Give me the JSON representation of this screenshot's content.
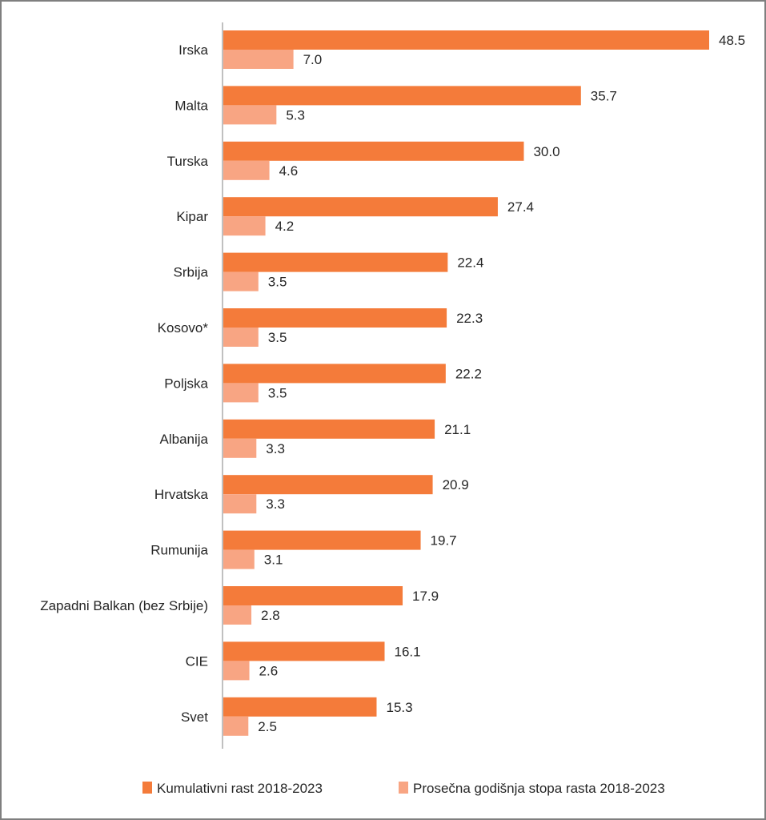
{
  "chart_data": {
    "type": "bar",
    "orientation": "horizontal",
    "title": "",
    "xlabel": "",
    "ylabel": "",
    "categories": [
      "Irska",
      "Malta",
      "Turska",
      "Kipar",
      "Srbija",
      "Kosovo*",
      "Poljska",
      "Albanija",
      "Hrvatska",
      "Rumunija",
      "Zapadni Balkan (bez Srbije)",
      "CIE",
      "Svet"
    ],
    "series": [
      {
        "name": "Kumulativni rast 2018-2023",
        "color": "#f47b3a",
        "values": [
          48.5,
          35.7,
          30.0,
          27.4,
          22.4,
          22.3,
          22.2,
          21.1,
          20.9,
          19.7,
          17.9,
          16.1,
          15.3
        ]
      },
      {
        "name": "Prosečna godišnja stopa rasta 2018-2023",
        "color": "#f8a583",
        "values": [
          7.0,
          5.3,
          4.6,
          4.2,
          3.5,
          3.5,
          3.5,
          3.3,
          3.3,
          3.1,
          2.8,
          2.6,
          2.5
        ]
      }
    ],
    "value_labels": [
      [
        "48.5",
        "35.7",
        "30.0",
        "27.4",
        "22.4",
        "22.3",
        "22.2",
        "21.1",
        "20.9",
        "19.7",
        "17.9",
        "16.1",
        "15.3"
      ],
      [
        "7.0",
        "5.3",
        "4.6",
        "4.2",
        "3.5",
        "3.5",
        "3.5",
        "3.3",
        "3.3",
        "3.1",
        "2.8",
        "2.6",
        "2.5"
      ]
    ],
    "xlim": [
      0,
      50
    ],
    "grid": false,
    "x_axis_visible": false,
    "legend_position": "bottom"
  },
  "legend": {
    "items": [
      "Kumulativni rast 2018-2023",
      "Prosečna godišnja stopa rasta 2018-2023"
    ]
  }
}
